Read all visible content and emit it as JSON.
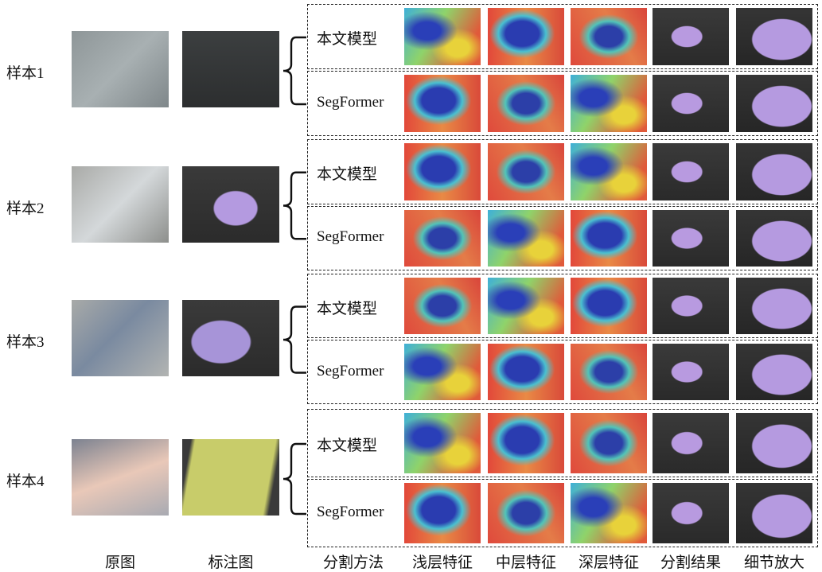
{
  "samples": [
    {
      "label": "样本1"
    },
    {
      "label": "样本2"
    },
    {
      "label": "样本3"
    },
    {
      "label": "样本4"
    }
  ],
  "methods": [
    "本文模型",
    "SegFormer"
  ],
  "columns": [
    "原图",
    "标注图",
    "分割方法",
    "浅层特征",
    "中层特征",
    "深层特征",
    "分割结果",
    "细节放大"
  ]
}
